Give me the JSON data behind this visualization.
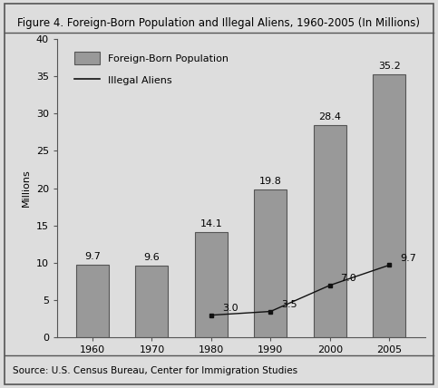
{
  "title": "Figure 4. Foreign-Born Population and Illegal Aliens, 1960-2005 (In Millions)",
  "source": "Source: U.S. Census Bureau, Center for Immigration Studies",
  "years": [
    "1960",
    "1970",
    "1980",
    "1990",
    "2000",
    "2005"
  ],
  "foreign_born": [
    9.7,
    9.6,
    14.1,
    19.8,
    28.4,
    35.2
  ],
  "illegal_aliens": [
    null,
    null,
    3.0,
    3.5,
    7.0,
    9.7
  ],
  "bar_color": "#999999",
  "bar_edgecolor": "#555555",
  "line_color": "#111111",
  "ylabel": "Millions",
  "ylim": [
    0,
    40
  ],
  "yticks": [
    0,
    5,
    10,
    15,
    20,
    25,
    30,
    35,
    40
  ],
  "legend_bar_label": "Foreign-Born Population",
  "legend_line_label": "Illegal Aliens",
  "bar_width": 0.55,
  "figsize": [
    4.83,
    4.28
  ],
  "dpi": 100,
  "background_color": "#dddddd",
  "title_fontsize": 8.5,
  "label_fontsize": 8,
  "tick_fontsize": 8,
  "source_fontsize": 7.5,
  "annot_fontsize": 8
}
